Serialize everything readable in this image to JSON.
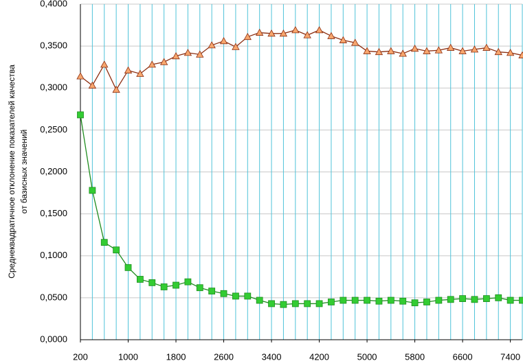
{
  "chart_data": {
    "type": "line",
    "ylabel": [
      "Среднеквадратичное отклонение показателей качества",
      "от базисных значений"
    ],
    "x": [
      200,
      400,
      600,
      800,
      1000,
      1200,
      1400,
      1600,
      1800,
      2000,
      2200,
      2400,
      2600,
      2800,
      3000,
      3200,
      3400,
      3600,
      3800,
      4000,
      4200,
      4400,
      4600,
      4800,
      5000,
      5200,
      5400,
      5600,
      5800,
      6000,
      6200,
      6400,
      6600,
      6800,
      7000,
      7200,
      7400,
      7600
    ],
    "xlim": [
      200,
      7600
    ],
    "xticks": [
      200,
      1000,
      1800,
      2600,
      3400,
      4200,
      5000,
      5800,
      6600,
      7400
    ],
    "xgrid": [
      200,
      400,
      600,
      800,
      1000,
      1200,
      1400,
      1600,
      1800,
      2000,
      2200,
      2400,
      2600,
      2800,
      3000,
      3200,
      3400,
      3600,
      3800,
      4000,
      4200,
      4400,
      4600,
      4800,
      5000,
      5200,
      5400,
      5600,
      5800,
      6000,
      6200,
      6400,
      6600,
      6800,
      7000,
      7200,
      7400,
      7600
    ],
    "xgrid_color": "#4fc3d9",
    "ylim": [
      0,
      0.4
    ],
    "yticks": [
      {
        "value": 0,
        "label": "0,0000"
      },
      {
        "value": 0.05,
        "label": "0,0500"
      },
      {
        "value": 0.1,
        "label": "0,1000"
      },
      {
        "value": 0.15,
        "label": "0,1500"
      },
      {
        "value": 0.2,
        "label": "0,2000"
      },
      {
        "value": 0.25,
        "label": "0,2500"
      },
      {
        "value": 0.3,
        "label": "0,3000"
      },
      {
        "value": 0.35,
        "label": "0,3500"
      },
      {
        "value": 0.4,
        "label": "0,4000"
      }
    ],
    "grid": true,
    "series": [
      {
        "color": "#8b2c0e",
        "marker": "triangle",
        "marker_color": "#f6a66e",
        "values": [
          0.314,
          0.303,
          0.328,
          0.298,
          0.321,
          0.317,
          0.328,
          0.331,
          0.338,
          0.342,
          0.34,
          0.351,
          0.356,
          0.349,
          0.361,
          0.366,
          0.365,
          0.365,
          0.369,
          0.363,
          0.369,
          0.362,
          0.357,
          0.354,
          0.344,
          0.343,
          0.344,
          0.341,
          0.347,
          0.344,
          0.345,
          0.348,
          0.344,
          0.346,
          0.348,
          0.343,
          0.342,
          0.339
        ]
      },
      {
        "color": "#1e8c1e",
        "marker": "square",
        "marker_color": "#33cc33",
        "values": [
          0.268,
          0.178,
          0.116,
          0.107,
          0.086,
          0.072,
          0.068,
          0.063,
          0.065,
          0.069,
          0.062,
          0.058,
          0.055,
          0.052,
          0.052,
          0.047,
          0.043,
          0.042,
          0.043,
          0.043,
          0.043,
          0.045,
          0.047,
          0.047,
          0.047,
          0.046,
          0.047,
          0.046,
          0.044,
          0.045,
          0.047,
          0.048,
          0.049,
          0.048,
          0.049,
          0.05,
          0.047,
          0.047
        ]
      }
    ]
  }
}
